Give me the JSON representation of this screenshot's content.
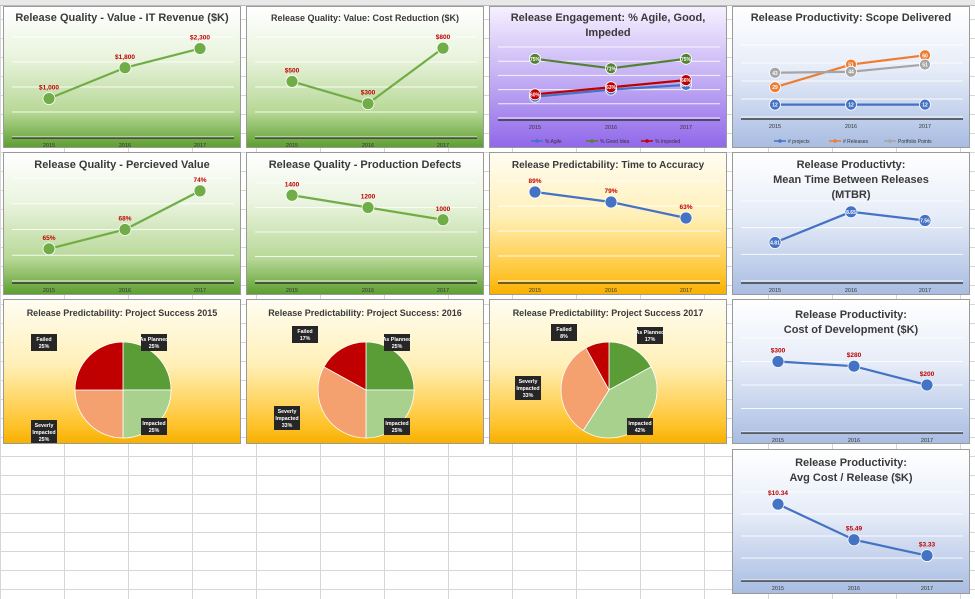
{
  "chart_data": [
    {
      "id": "c1",
      "type": "line",
      "title": "Release Quality - Value - IT Revenue ($K)",
      "categories": [
        "2015",
        "2016",
        "2017"
      ],
      "series": [
        {
          "values": [
            1000,
            1800,
            2300
          ],
          "labels": [
            "$1,000",
            "$1,800",
            "$2,300"
          ],
          "color": "#70ad47"
        }
      ],
      "ylim": [
        0,
        2600
      ]
    },
    {
      "id": "c2",
      "type": "line",
      "title": "Release Quality: Value: Cost Reduction ($K)",
      "categories": [
        "2015",
        "2016",
        "2017"
      ],
      "series": [
        {
          "values": [
            500,
            300,
            800
          ],
          "labels": [
            "$500",
            "$300",
            "$800"
          ],
          "color": "#70ad47"
        }
      ],
      "ylim": [
        0,
        900
      ]
    },
    {
      "id": "c3",
      "type": "line",
      "title": "Release Engagement: % Agile, Good,\nImpeded",
      "categories": [
        "2015",
        "2016",
        "2017"
      ],
      "series": [
        {
          "name": "% Agile",
          "values": [
            59,
            62,
            64
          ],
          "labels": [
            "59%",
            "62%",
            "64%"
          ],
          "color": "#4472c4"
        },
        {
          "name": "% Good Idea",
          "values": [
            75,
            71,
            75
          ],
          "labels": [
            "75%",
            "71%",
            "75%"
          ],
          "color": "#548235"
        },
        {
          "name": "% Impeded",
          "values": [
            60,
            63,
            66
          ],
          "labels": [
            "60%",
            "63%",
            "66%"
          ],
          "color": "#c00000"
        }
      ],
      "ylim": [
        50,
        80
      ]
    },
    {
      "id": "c4",
      "type": "line",
      "title": "Release Productivity: Scope Delivered",
      "categories": [
        "2015",
        "2016",
        "2017"
      ],
      "series": [
        {
          "name": "# projects",
          "values": [
            12,
            12,
            12
          ],
          "labels": [
            "12",
            "12",
            "12"
          ],
          "color": "#4472c4"
        },
        {
          "name": "# Releases",
          "values": [
            29,
            51,
            60
          ],
          "labels": [
            "29",
            "51",
            "60"
          ],
          "color": "#ed7d31"
        },
        {
          "name": "Portfolio Points",
          "values": [
            43,
            44,
            51
          ],
          "labels": [
            "43",
            "44",
            "51"
          ],
          "color": "#a5a5a5"
        }
      ],
      "ylim": [
        0,
        70
      ]
    },
    {
      "id": "c5",
      "type": "line",
      "title": "Release Quality - Percieved Value",
      "categories": [
        "2015",
        "2016",
        "2017"
      ],
      "series": [
        {
          "values": [
            65,
            68,
            74
          ],
          "labels": [
            "65%",
            "68%",
            "74%"
          ],
          "color": "#70ad47"
        }
      ],
      "ylim": [
        60,
        76
      ]
    },
    {
      "id": "c6",
      "type": "line",
      "title": "Release Quality - Production Defects",
      "categories": [
        "2015",
        "2016",
        "2017"
      ],
      "series": [
        {
          "values": [
            1400,
            1200,
            1000
          ],
          "labels": [
            "1400",
            "1200",
            "1000"
          ],
          "color": "#70ad47"
        }
      ],
      "ylim": [
        0,
        1600
      ]
    },
    {
      "id": "c7",
      "type": "line",
      "title": "Release Predictability: Time to Accuracy",
      "categories": [
        "2015",
        "2016",
        "2017"
      ],
      "series": [
        {
          "values": [
            89,
            79,
            63
          ],
          "labels": [
            "89%",
            "79%",
            "63%"
          ],
          "color": "#4472c4"
        }
      ],
      "ylim": [
        0,
        100
      ]
    },
    {
      "id": "c8",
      "type": "line",
      "title": "Release Productivty:\nMean Time Between Releases\n(MTBR)",
      "categories": [
        "2015",
        "2016",
        "2017"
      ],
      "series": [
        {
          "values": [
            4.81,
            8.65,
            7.56
          ],
          "labels": [
            "4.81",
            "8.65",
            "7.56"
          ],
          "color": "#4472c4"
        }
      ],
      "ylim": [
        0,
        10
      ]
    },
    {
      "id": "c9",
      "type": "pie",
      "title": "Release Predictability: Project Success 2015",
      "slices": [
        {
          "name": "As Planned",
          "value": 25,
          "label": "As Planned\n25%",
          "color": "#5a9c36"
        },
        {
          "name": "Impacted",
          "value": 25,
          "label": "Impacted\n25%",
          "color": "#a9d18e"
        },
        {
          "name": "Severly Impacted",
          "value": 25,
          "label": "Severly\nImpacted\n25%",
          "color": "#f4a16f"
        },
        {
          "name": "Failed",
          "value": 25,
          "label": "Failed\n25%",
          "color": "#c00000"
        }
      ]
    },
    {
      "id": "c10",
      "type": "pie",
      "title": "Release Predictability: Project Success: 2016",
      "slices": [
        {
          "name": "As Planned",
          "value": 25,
          "label": "As Planned\n25%",
          "color": "#5a9c36"
        },
        {
          "name": "Impacted",
          "value": 25,
          "label": "Impacted\n25%",
          "color": "#a9d18e"
        },
        {
          "name": "Severly Impacted",
          "value": 33,
          "label": "Severly\nImpacted\n33%",
          "color": "#f4a16f"
        },
        {
          "name": "Failed",
          "value": 17,
          "label": "Failed\n17%",
          "color": "#c00000"
        }
      ]
    },
    {
      "id": "c11",
      "type": "pie",
      "title": "Release Predictability: Project Success 2017",
      "slices": [
        {
          "name": "As Planned",
          "value": 17,
          "label": "As Planned\n17%",
          "color": "#5a9c36"
        },
        {
          "name": "Impacted",
          "value": 42,
          "label": "Impacted\n42%",
          "color": "#a9d18e"
        },
        {
          "name": "Severly Impacted",
          "value": 33,
          "label": "Severly\nImpacted\n33%",
          "color": "#f4a16f"
        },
        {
          "name": "Failed",
          "value": 8,
          "label": "Failed\n8%",
          "color": "#c00000"
        }
      ]
    },
    {
      "id": "c12",
      "type": "line",
      "title": "Release Productivity:\nCost of Development ($K)",
      "categories": [
        "2015",
        "2016",
        "2017"
      ],
      "series": [
        {
          "values": [
            300,
            280,
            200
          ],
          "labels": [
            "$300",
            "$280",
            "$200"
          ],
          "color": "#4472c4"
        }
      ],
      "ylim": [
        0,
        400
      ]
    },
    {
      "id": "c13",
      "type": "line",
      "title": "Release Productivity:\nAvg Cost / Release ($K)",
      "categories": [
        "2015",
        "2016",
        "2017"
      ],
      "series": [
        {
          "values": [
            10.34,
            5.49,
            3.33
          ],
          "labels": [
            "$10.34",
            "$5.49",
            "$3.33"
          ],
          "color": "#4472c4"
        }
      ],
      "ylim": [
        0,
        12
      ]
    }
  ]
}
